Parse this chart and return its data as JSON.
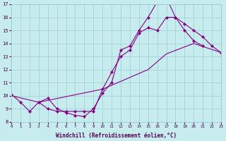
{
  "xlabel": "Windchill (Refroidissement éolien,°C)",
  "bg_color": "#c6ecee",
  "grid_color": "#9dcdd1",
  "line_color": "#880088",
  "xmin": 0,
  "xmax": 23,
  "ymin": 8,
  "ymax": 17,
  "xticks": [
    0,
    1,
    2,
    3,
    4,
    5,
    6,
    7,
    8,
    9,
    10,
    11,
    12,
    13,
    14,
    15,
    16,
    17,
    18,
    19,
    20,
    21,
    22,
    23
  ],
  "yticks": [
    8,
    9,
    10,
    11,
    12,
    13,
    14,
    15,
    16,
    17
  ],
  "line1_x": [
    0,
    1,
    2,
    3,
    4,
    5,
    6,
    7,
    8,
    9,
    10,
    11,
    12,
    13,
    14,
    15,
    16,
    17,
    18,
    19,
    20,
    21
  ],
  "line1_y": [
    10.1,
    9.5,
    8.8,
    9.5,
    9.8,
    9.0,
    8.7,
    8.5,
    8.4,
    9.0,
    10.2,
    11.0,
    13.5,
    13.8,
    15.0,
    16.0,
    17.2,
    17.5,
    16.0,
    15.0,
    14.2,
    13.8
  ],
  "line2_x": [
    3,
    4,
    5,
    6,
    7,
    8,
    9,
    10,
    11,
    12,
    13,
    14,
    15,
    16,
    17,
    18,
    19,
    20,
    21,
    22,
    23
  ],
  "line2_y": [
    9.5,
    9.0,
    8.8,
    8.8,
    8.8,
    8.8,
    8.8,
    10.5,
    11.8,
    13.0,
    13.5,
    14.8,
    15.2,
    15.0,
    16.0,
    16.0,
    15.5,
    15.0,
    14.5,
    13.8,
    13.3
  ],
  "line3_x": [
    0,
    3,
    10,
    15,
    17,
    20,
    23
  ],
  "line3_y": [
    10.0,
    9.5,
    10.5,
    12.0,
    13.2,
    14.0,
    13.3
  ]
}
